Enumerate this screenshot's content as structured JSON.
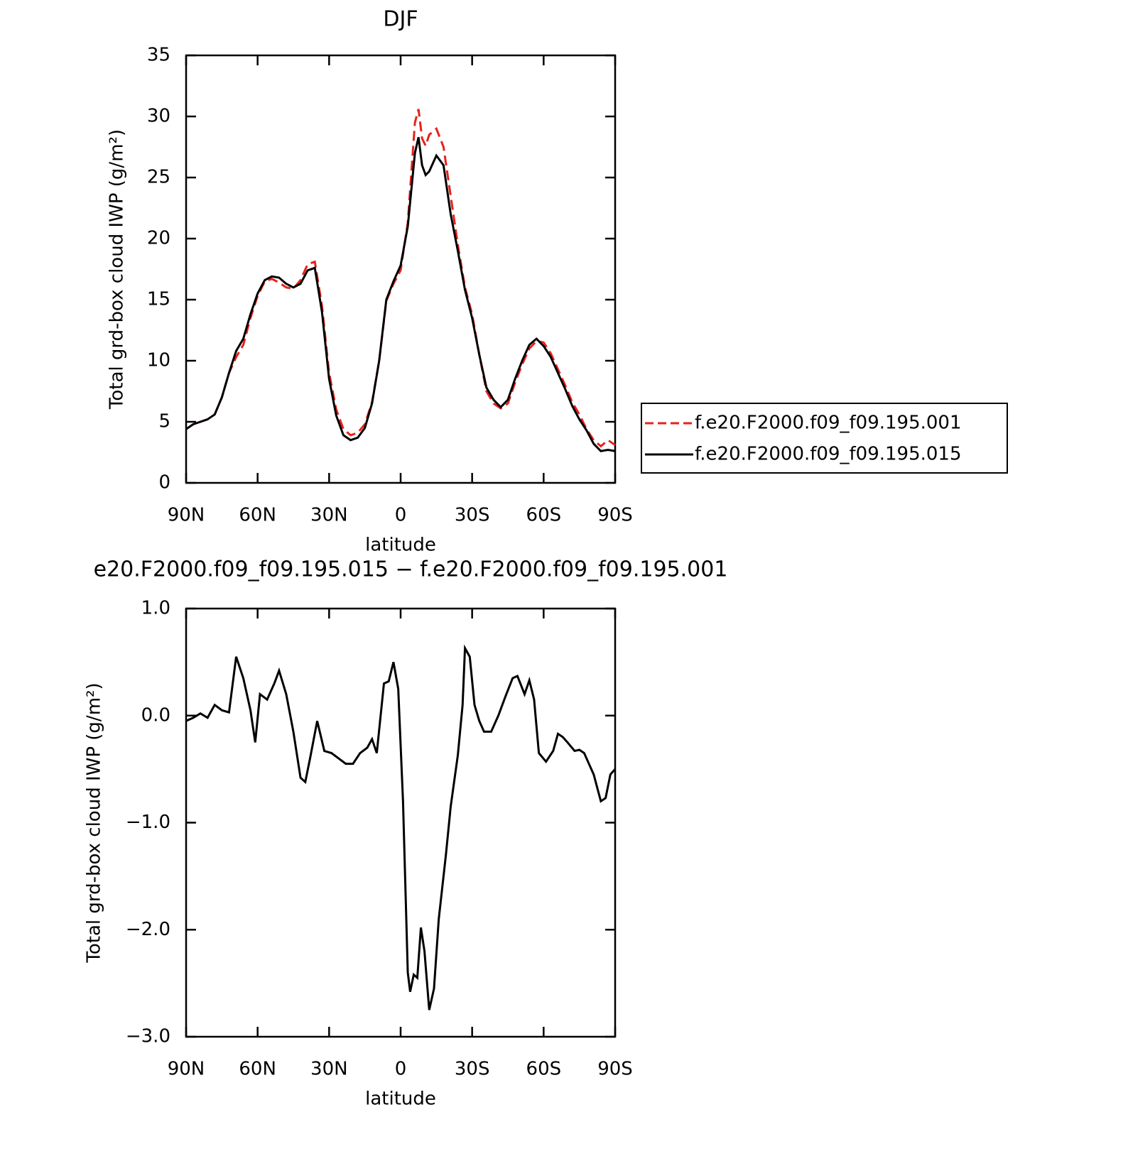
{
  "chart_data": [
    {
      "type": "line",
      "title": "DJF",
      "xlabel": "latitude",
      "ylabel": "Total grd-box cloud IWP (g/m²)",
      "x": [
        90,
        87,
        84,
        81,
        78,
        75,
        72,
        69,
        66,
        63,
        60,
        57,
        54,
        51,
        48,
        45,
        42,
        39,
        36,
        33,
        30,
        27,
        24,
        21,
        18,
        15,
        12,
        9,
        6,
        3,
        0,
        -3,
        -6,
        -7.5,
        -9,
        -10.5,
        -12,
        -15,
        -18,
        -21,
        -24,
        -27,
        -30,
        -33,
        -36,
        -39,
        -42,
        -45,
        -48,
        -51,
        -54,
        -57,
        -60,
        -63,
        -66,
        -69,
        -72,
        -75,
        -78,
        -81,
        -84,
        -87,
        -90
      ],
      "series": [
        {
          "name": "f.e20.F2000.f09_f09.195.001",
          "color": "#e8201c",
          "dashed": true,
          "values": [
            4.4,
            4.8,
            5.0,
            5.2,
            5.6,
            7.0,
            9.0,
            10.3,
            11.3,
            13.5,
            15.3,
            16.5,
            16.7,
            16.4,
            16.0,
            15.9,
            16.6,
            17.9,
            18.1,
            14.5,
            9.0,
            6.0,
            4.4,
            3.9,
            4.1,
            4.8,
            6.6,
            10.0,
            14.9,
            16.3,
            17.4,
            21.3,
            29.5,
            30.6,
            28.2,
            27.6,
            28.5,
            29.0,
            27.5,
            23.5,
            19.5,
            16.0,
            13.8,
            10.5,
            7.5,
            6.5,
            6.1,
            6.5,
            8.2,
            9.7,
            11.0,
            11.6,
            11.5,
            10.6,
            9.3,
            8.0,
            6.6,
            5.6,
            4.4,
            3.5,
            3.0,
            3.5,
            3.1
          ]
        },
        {
          "name": "f.e20.F2000.f09_f09.195.015",
          "color": "#000000",
          "dashed": false,
          "values": [
            4.4,
            4.8,
            5.0,
            5.2,
            5.6,
            7.0,
            9.0,
            10.8,
            11.8,
            13.8,
            15.5,
            16.6,
            16.9,
            16.8,
            16.3,
            16.0,
            16.3,
            17.4,
            17.6,
            14.0,
            8.5,
            5.5,
            3.9,
            3.5,
            3.7,
            4.5,
            6.5,
            10.0,
            15.0,
            16.5,
            17.8,
            21.0,
            27.0,
            28.3,
            26.0,
            25.2,
            25.5,
            26.8,
            26.0,
            22.0,
            19.0,
            15.8,
            13.5,
            10.5,
            7.8,
            6.8,
            6.2,
            6.8,
            8.5,
            10.0,
            11.3,
            11.8,
            11.2,
            10.3,
            9.0,
            7.7,
            6.3,
            5.2,
            4.3,
            3.2,
            2.6,
            2.7,
            2.6
          ]
        }
      ],
      "xlim": [
        90,
        -90
      ],
      "xticks": [
        {
          "value": 90,
          "label": "90N"
        },
        {
          "value": 60,
          "label": "60N"
        },
        {
          "value": 30,
          "label": "30N"
        },
        0,
        {
          "value": -30,
          "label": "30S"
        },
        {
          "value": -60,
          "label": "60S"
        },
        {
          "value": -90,
          "label": "90S"
        }
      ],
      "ylim": [
        0,
        35
      ],
      "yticks": [
        0,
        5,
        10,
        15,
        20,
        25,
        30,
        35
      ],
      "legend": "right"
    },
    {
      "type": "line",
      "title": "e20.F2000.f09_f09.195.015 − f.e20.F2000.f09_f09.195.001",
      "xlabel": "latitude",
      "ylabel": "Total grd-box cloud IWP (g/m²)",
      "x": [
        90,
        87,
        84,
        81,
        78,
        75,
        72,
        69,
        66,
        63,
        61,
        59,
        56,
        53,
        51,
        48,
        45,
        42,
        40,
        38,
        35,
        32,
        29,
        26,
        23,
        20,
        17,
        14,
        12,
        10,
        7,
        5,
        3,
        1,
        -1,
        -3,
        -4,
        -5.5,
        -7,
        -8.5,
        -10,
        -12,
        -14,
        -16,
        -19,
        -21,
        -24,
        -26,
        -27,
        -29,
        -31,
        -33,
        -35,
        -38,
        -41,
        -44,
        -47,
        -49,
        -52,
        -54,
        -56,
        -58,
        -61,
        -64,
        -66,
        -68,
        -70,
        -73,
        -75,
        -77,
        -79,
        -81,
        -84,
        -86,
        -88,
        -90
      ],
      "values": [
        -0.05,
        -0.02,
        0.02,
        -0.02,
        0.1,
        0.05,
        0.03,
        0.55,
        0.35,
        0.05,
        -0.25,
        0.2,
        0.15,
        0.3,
        0.42,
        0.2,
        -0.15,
        -0.58,
        -0.62,
        -0.4,
        -0.05,
        -0.33,
        -0.35,
        -0.4,
        -0.45,
        -0.45,
        -0.35,
        -0.3,
        -0.22,
        -0.35,
        0.3,
        0.32,
        0.5,
        0.25,
        -0.8,
        -2.4,
        -2.58,
        -2.42,
        -2.45,
        -1.98,
        -2.2,
        -2.75,
        -2.55,
        -1.9,
        -1.3,
        -0.85,
        -0.37,
        0.1,
        0.63,
        0.55,
        0.1,
        -0.05,
        -0.15,
        -0.15,
        0.0,
        0.18,
        0.35,
        0.37,
        0.2,
        0.33,
        0.15,
        -0.35,
        -0.43,
        -0.33,
        -0.17,
        -0.2,
        -0.25,
        -0.33,
        -0.32,
        -0.35,
        -0.45,
        -0.55,
        -0.8,
        -0.77,
        -0.55,
        -0.5
      ],
      "color": "#000000",
      "xlim": [
        90,
        -90
      ],
      "xticks": [
        {
          "value": 90,
          "label": "90N"
        },
        {
          "value": 60,
          "label": "60N"
        },
        {
          "value": 30,
          "label": "30N"
        },
        0,
        {
          "value": -30,
          "label": "30S"
        },
        {
          "value": -60,
          "label": "60S"
        },
        {
          "value": -90,
          "label": "90S"
        }
      ],
      "ylim": [
        -3,
        1
      ],
      "yticks": [
        {
          "value": -3,
          "label": "−3.0"
        },
        {
          "value": -2,
          "label": "−2.0"
        },
        {
          "value": -1,
          "label": "−1.0"
        },
        {
          "value": 0,
          "label": "0.0"
        },
        {
          "value": 1,
          "label": "1.0"
        }
      ]
    }
  ]
}
